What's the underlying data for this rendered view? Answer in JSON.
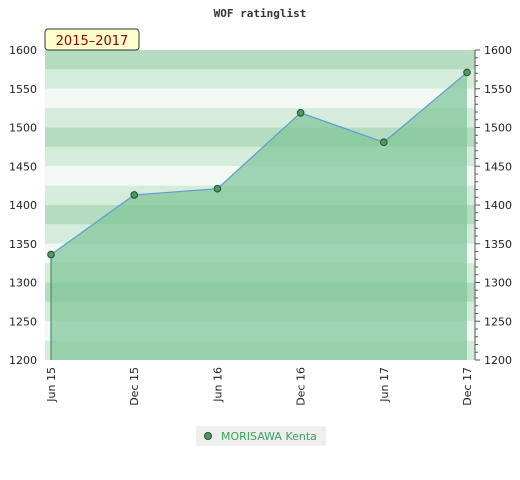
{
  "chart_data": {
    "type": "area",
    "title": "WOF ratinglist",
    "period_label": "2015–2017",
    "categories": [
      "Jun 15",
      "Dec 15",
      "Jun 16",
      "Dec 16",
      "Jun 17",
      "Dec 17"
    ],
    "series": [
      {
        "name": "MORISAWA Kenta",
        "values": [
          1336,
          1413,
          1421,
          1519,
          1481,
          1571
        ]
      }
    ],
    "ylim": [
      1200,
      1600
    ],
    "yticks": [
      1200,
      1250,
      1300,
      1350,
      1400,
      1450,
      1500,
      1550,
      1600
    ],
    "ytick_labels": [
      "1200",
      "1250",
      "1300",
      "1350",
      "1400",
      "1450",
      "1500",
      "1550",
      "1600"
    ],
    "grid": true,
    "legend_position": "bottom",
    "colors": {
      "line": "#5b9bd5",
      "area": "#7cc496",
      "marker": "#4c9a63",
      "band_light": "#f2f8f3",
      "band_mid": "#d5ecdb",
      "band_dark": "#b5dcc0",
      "legend_bg": "#eeeeee",
      "badge_bg": "#ffffcc"
    }
  }
}
